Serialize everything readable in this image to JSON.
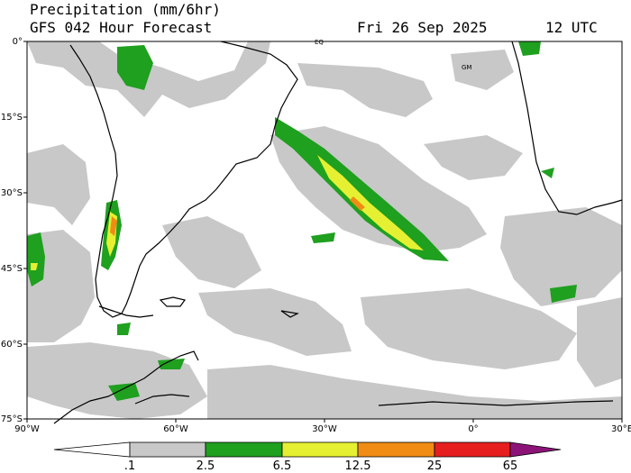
{
  "header": {
    "title": "Precipitation (mm/6hr)",
    "subtitle": "GFS 042 Hour Forecast",
    "valid_date": "Fri 26 Sep 2025",
    "valid_hour": "12 UTC"
  },
  "map": {
    "lat_labels": [
      "0°",
      "15°S",
      "30°S",
      "45°S",
      "60°S",
      "75°S"
    ],
    "lon_labels": [
      "90°W",
      "60°W",
      "30°W",
      "0°",
      "30°E"
    ],
    "markers": [
      "EQ",
      "GM"
    ]
  },
  "colorbar": {
    "ticks": [
      ".1",
      "2.5",
      "6.5",
      "12.5",
      "25",
      "65"
    ],
    "colors": [
      "#ffffff",
      "#c8c8c8",
      "#1fa01f",
      "#e6f032",
      "#f08c14",
      "#e61e1e",
      "#8c1478"
    ]
  },
  "colors": {
    "ocean": "#ffffff",
    "land": "#ffffff",
    "light_precip": "#c8c8c8",
    "moderate": "#1fa01f",
    "heavy": "#e6f032",
    "very_heavy": "#f08c14"
  }
}
